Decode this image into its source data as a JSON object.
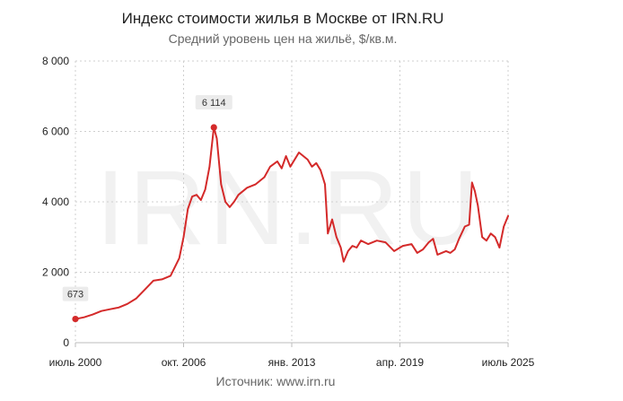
{
  "chart_data": {
    "type": "line",
    "title": "Индекс стоимости жилья в Москве от IRN.RU",
    "subtitle": "Средний уровень цен на жильё, $/кв.м.",
    "source": "Источник: www.irn.ru",
    "watermark": "IRN.RU",
    "xlabel": "",
    "ylabel": "",
    "ylim": [
      0,
      8000
    ],
    "xlim": [
      "2000-07",
      "2025-07"
    ],
    "grid": true,
    "legend": "none",
    "y_ticks": [
      {
        "value": 0,
        "label": "0"
      },
      {
        "value": 2000,
        "label": "2 000"
      },
      {
        "value": 4000,
        "label": "4 000"
      },
      {
        "value": 6000,
        "label": "6 000"
      },
      {
        "value": 8000,
        "label": "8 000"
      }
    ],
    "x_ticks": [
      {
        "value": "2000-07",
        "label": "июль 2000"
      },
      {
        "value": "2006-10",
        "label": "окт. 2006"
      },
      {
        "value": "2013-01",
        "label": "янв. 2013"
      },
      {
        "value": "2019-04",
        "label": "апр. 2019"
      },
      {
        "value": "2025-07",
        "label": "июль 2025"
      }
    ],
    "annotations": [
      {
        "x": "2000-07",
        "y": 673,
        "label": "673"
      },
      {
        "x": "2008-07",
        "y": 6114,
        "label": "6 114"
      }
    ],
    "series": [
      {
        "color": "#d42a2a",
        "points": [
          [
            "2000-07",
            673
          ],
          [
            "2001-01",
            720
          ],
          [
            "2001-07",
            800
          ],
          [
            "2002-01",
            900
          ],
          [
            "2002-07",
            950
          ],
          [
            "2003-01",
            1000
          ],
          [
            "2003-07",
            1100
          ],
          [
            "2004-01",
            1250
          ],
          [
            "2004-07",
            1500
          ],
          [
            "2005-01",
            1760
          ],
          [
            "2005-07",
            1800
          ],
          [
            "2006-01",
            1900
          ],
          [
            "2006-07",
            2400
          ],
          [
            "2006-10",
            3000
          ],
          [
            "2007-01",
            3800
          ],
          [
            "2007-04",
            4150
          ],
          [
            "2007-07",
            4200
          ],
          [
            "2007-10",
            4050
          ],
          [
            "2008-01",
            4350
          ],
          [
            "2008-04",
            5000
          ],
          [
            "2008-07",
            6114
          ],
          [
            "2008-09",
            5800
          ],
          [
            "2008-12",
            4500
          ],
          [
            "2009-03",
            4000
          ],
          [
            "2009-06",
            3850
          ],
          [
            "2009-09",
            4000
          ],
          [
            "2009-12",
            4200
          ],
          [
            "2010-06",
            4400
          ],
          [
            "2010-12",
            4500
          ],
          [
            "2011-06",
            4700
          ],
          [
            "2011-10",
            5000
          ],
          [
            "2012-03",
            5150
          ],
          [
            "2012-06",
            4950
          ],
          [
            "2012-09",
            5300
          ],
          [
            "2012-12",
            5000
          ],
          [
            "2013-06",
            5400
          ],
          [
            "2013-12",
            5200
          ],
          [
            "2014-03",
            5000
          ],
          [
            "2014-06",
            5100
          ],
          [
            "2014-09",
            4900
          ],
          [
            "2014-12",
            4500
          ],
          [
            "2015-02",
            3100
          ],
          [
            "2015-05",
            3500
          ],
          [
            "2015-08",
            3000
          ],
          [
            "2015-11",
            2700
          ],
          [
            "2016-01",
            2300
          ],
          [
            "2016-04",
            2600
          ],
          [
            "2016-07",
            2750
          ],
          [
            "2016-10",
            2700
          ],
          [
            "2017-01",
            2900
          ],
          [
            "2017-06",
            2800
          ],
          [
            "2017-12",
            2900
          ],
          [
            "2018-06",
            2850
          ],
          [
            "2018-12",
            2600
          ],
          [
            "2019-06",
            2750
          ],
          [
            "2019-12",
            2800
          ],
          [
            "2020-04",
            2550
          ],
          [
            "2020-08",
            2650
          ],
          [
            "2020-12",
            2850
          ],
          [
            "2021-03",
            2950
          ],
          [
            "2021-06",
            2500
          ],
          [
            "2021-12",
            2600
          ],
          [
            "2022-03",
            2550
          ],
          [
            "2022-06",
            2650
          ],
          [
            "2022-09",
            2950
          ],
          [
            "2023-01",
            3300
          ],
          [
            "2023-04",
            3350
          ],
          [
            "2023-06",
            4550
          ],
          [
            "2023-08",
            4300
          ],
          [
            "2023-10",
            3900
          ],
          [
            "2024-01",
            3000
          ],
          [
            "2024-04",
            2900
          ],
          [
            "2024-07",
            3100
          ],
          [
            "2024-10",
            3000
          ],
          [
            "2025-01",
            2700
          ],
          [
            "2025-04",
            3300
          ],
          [
            "2025-07",
            3600
          ]
        ]
      }
    ]
  }
}
